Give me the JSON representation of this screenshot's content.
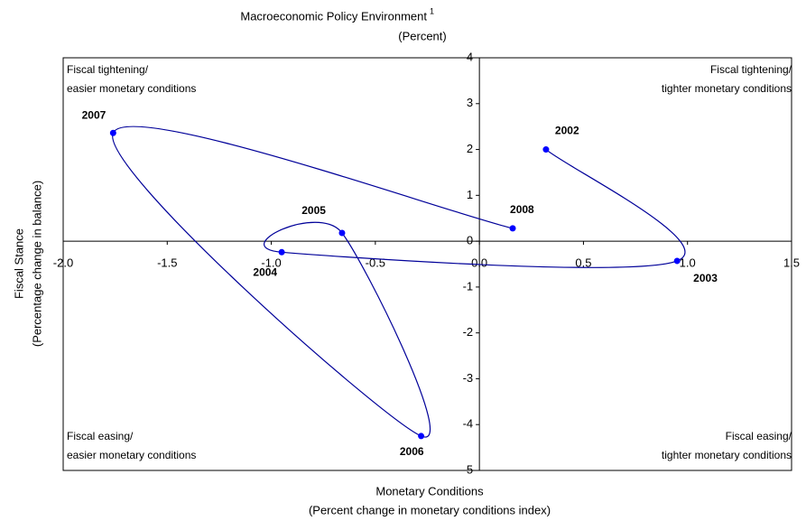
{
  "chart_data": {
    "type": "line",
    "title": "Macroeconomic Policy Environment",
    "title_note": "1",
    "subtitle": "(Percent)",
    "x_label": [
      "Monetary Conditions",
      "(Percent change in monetary conditions index)"
    ],
    "y_label": [
      "Fiscal Stance",
      "(Percentage change in balance)"
    ],
    "x": [
      0.32,
      0.95,
      -0.95,
      -0.66,
      -0.28,
      -1.76,
      0.16
    ],
    "y": [
      2.0,
      -0.43,
      -0.24,
      0.18,
      -4.25,
      2.36,
      0.28
    ],
    "labels": [
      "2002",
      "2003",
      "2004",
      "2005",
      "2006",
      "2007",
      "2008"
    ],
    "color": "#000099",
    "marker_color": "#0000ff",
    "xlim": [
      -2,
      1.5
    ],
    "ylim": [
      -5,
      4
    ],
    "xticks": [
      {
        "value": -2,
        "label": "-2.0"
      },
      -1.5,
      {
        "value": -1,
        "label": "-1.0"
      },
      -0.5,
      {
        "value": 0,
        "label": "0.0"
      },
      0.5,
      {
        "value": 1,
        "label": "1.0"
      },
      1.5
    ],
    "yticks": [
      -5,
      -4,
      -3,
      -2,
      -1,
      0,
      1,
      2,
      3,
      4
    ],
    "annotations": {
      "top_left": [
        "Fiscal tightening/",
        "easier monetary conditions"
      ],
      "top_right": [
        "Fiscal tightening/",
        "tighter monetary conditions"
      ],
      "bottom_left": [
        "Fiscal easing/",
        "easier monetary conditions"
      ],
      "bottom_right": [
        "Fiscal easing/",
        "tighter monetary conditions"
      ]
    }
  }
}
